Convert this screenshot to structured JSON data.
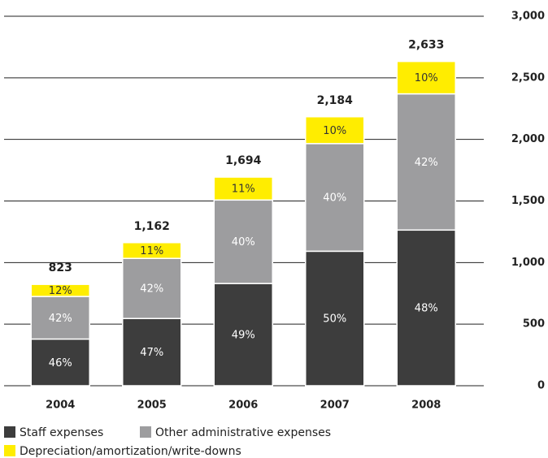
{
  "chart_data": {
    "type": "stacked_bar",
    "categories": [
      "2004",
      "2005",
      "2006",
      "2007",
      "2008"
    ],
    "series": [
      {
        "name": "Staff expenses",
        "color": "#3d3d3d",
        "label_color": "#ffffff",
        "values": [
          379,
          546,
          830,
          1092,
          1264
        ],
        "value_labels": [
          "46%",
          "47%",
          "49%",
          "50%",
          "48%"
        ]
      },
      {
        "name": "Other administrative expenses",
        "color": "#9d9d9f",
        "label_color": "#ffffff",
        "values": [
          346,
          488,
          678,
          874,
          1106
        ],
        "value_labels": [
          "42%",
          "42%",
          "40%",
          "40%",
          "42%"
        ]
      },
      {
        "name": "Depreciation/amortization/write-downs",
        "color": "#ffed00",
        "label_color": "#333333",
        "values": [
          98,
          128,
          186,
          218,
          263
        ],
        "value_labels": [
          "12%",
          "11%",
          "11%",
          "10%",
          "10%"
        ]
      }
    ],
    "totals": [
      823,
      1162,
      1694,
      2184,
      2633
    ],
    "total_labels": [
      "823",
      "1,162",
      "1,694",
      "2,184",
      "2,633"
    ],
    "ylim": [
      0,
      3000
    ],
    "yticks": [
      0,
      500,
      {
        "value": 1000,
        "label": "1,000"
      },
      {
        "value": 1500,
        "label": "1,500"
      },
      {
        "value": 2000,
        "label": "2,000"
      },
      {
        "value": 2500,
        "label": "2,500"
      },
      {
        "value": 3000,
        "label": "3,000"
      }
    ],
    "grid": true
  }
}
